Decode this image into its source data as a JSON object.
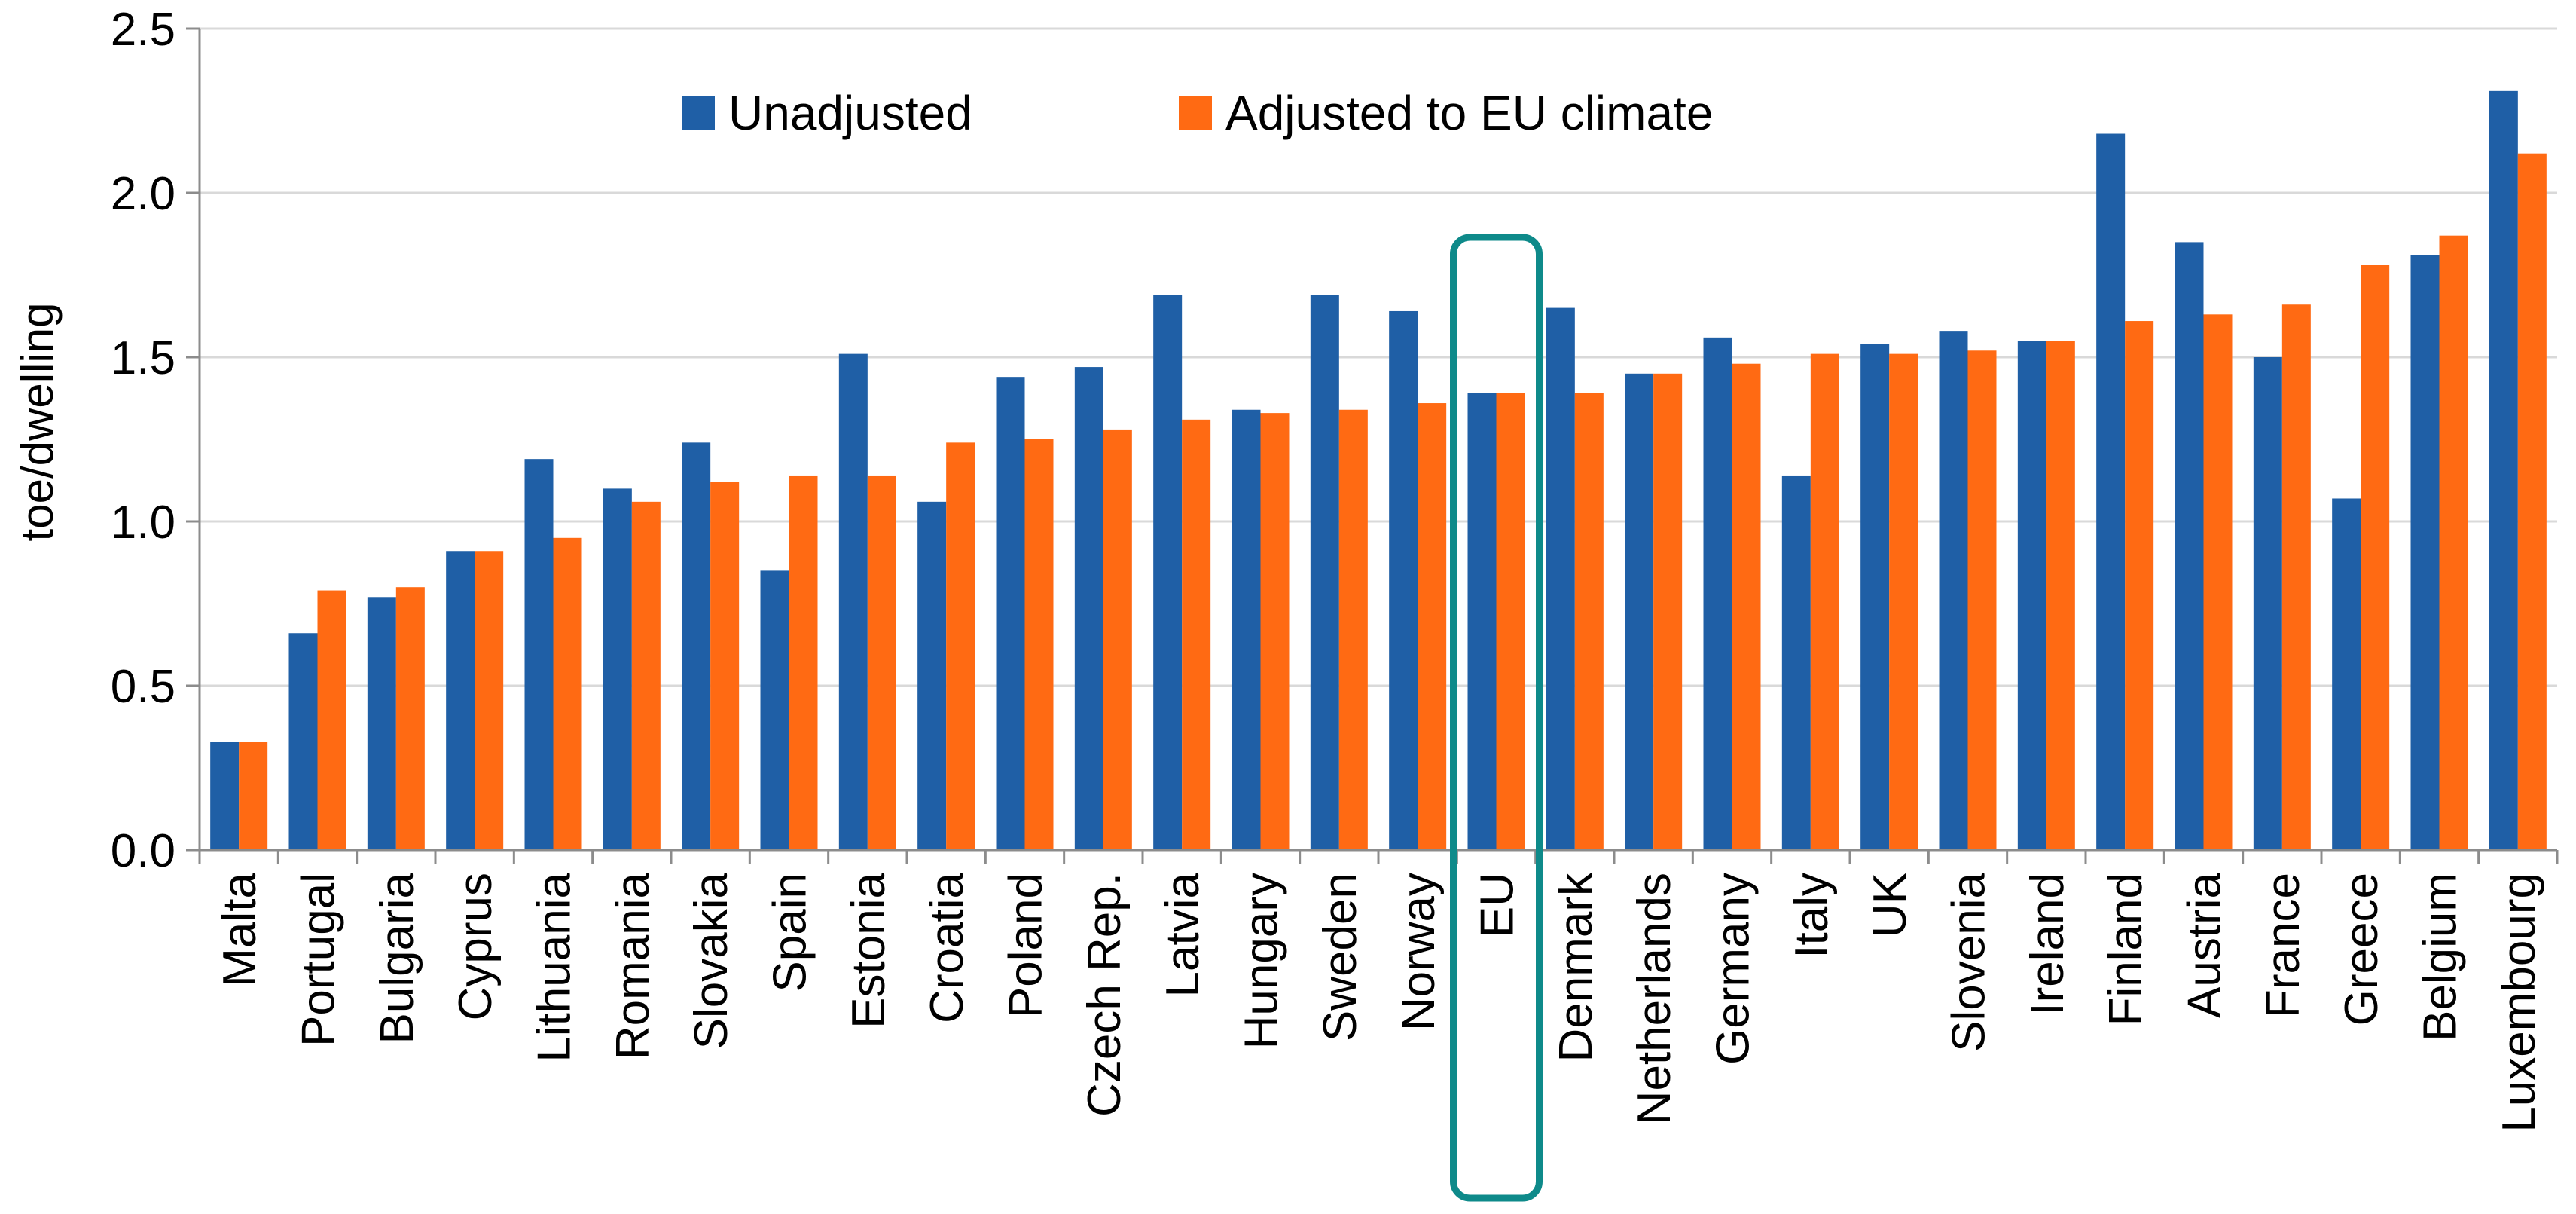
{
  "chart_data": {
    "type": "bar",
    "title": "",
    "xlabel": "",
    "ylabel": "toe/dwelling",
    "ylim": [
      0,
      2.5
    ],
    "yticks": [
      "0.0",
      "0.5",
      "1.0",
      "1.5",
      "2.0",
      "2.5"
    ],
    "grid": true,
    "legend_position": "top",
    "categories": [
      "Malta",
      "Portugal",
      "Bulgaria",
      "Cyprus",
      "Lithuania",
      "Romania",
      "Slovakia",
      "Spain",
      "Estonia",
      "Croatia",
      "Poland",
      "Czech Rep.",
      "Latvia",
      "Hungary",
      "Sweden",
      "Norway",
      "EU",
      "Denmark",
      "Netherlands",
      "Germany",
      "Italy",
      "UK",
      "Slovenia",
      "Ireland",
      "Finland",
      "Austria",
      "France",
      "Greece",
      "Belgium",
      "Luxembourg"
    ],
    "series": [
      {
        "name": "Unadjusted",
        "color": "#1f5fa6",
        "values": [
          0.33,
          0.66,
          0.77,
          0.91,
          1.19,
          1.1,
          1.24,
          0.85,
          1.51,
          1.06,
          1.44,
          1.47,
          1.69,
          1.34,
          1.69,
          1.64,
          1.39,
          1.65,
          1.45,
          1.56,
          1.14,
          1.54,
          1.58,
          1.55,
          2.18,
          1.85,
          1.5,
          1.07,
          1.81,
          2.31
        ]
      },
      {
        "name": "Adjusted to EU climate",
        "color": "#ff6a13",
        "values": [
          0.33,
          0.79,
          0.8,
          0.91,
          0.95,
          1.06,
          1.12,
          1.14,
          1.14,
          1.24,
          1.25,
          1.28,
          1.31,
          1.33,
          1.34,
          1.36,
          1.39,
          1.39,
          1.45,
          1.48,
          1.51,
          1.51,
          1.52,
          1.55,
          1.61,
          1.63,
          1.66,
          1.78,
          1.87,
          2.12
        ]
      }
    ],
    "highlight": {
      "category": "EU",
      "color": "#0e8a8a"
    }
  }
}
